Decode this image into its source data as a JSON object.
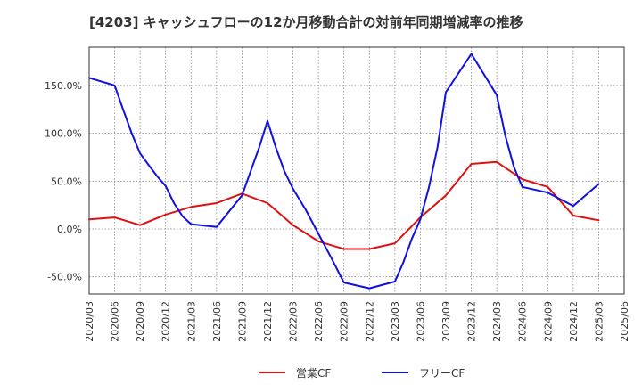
{
  "title": "[4203]  キャッシュフローの12か月移動合計の対前年同期増減率の推移",
  "chart_data": {
    "type": "line",
    "title": "[4203]  キャッシュフローの12か月移動合計の対前年同期増減率の推移",
    "xlabel": "",
    "ylabel": "",
    "x": [
      "2020/03",
      "2020/06",
      "2020/09",
      "2020/12",
      "2021/03",
      "2021/06",
      "2021/09",
      "2021/12",
      "2022/03",
      "2022/06",
      "2022/09",
      "2022/12",
      "2023/03",
      "2023/06",
      "2023/09",
      "2023/12",
      "2024/03",
      "2024/06",
      "2024/09",
      "2024/12",
      "2025/03",
      "2025/06"
    ],
    "y_ticks": [
      -50,
      0,
      50,
      100,
      150
    ],
    "y_tick_labels": [
      "-50.0%",
      "0.0%",
      "50.0%",
      "100.0%",
      "150.0%"
    ],
    "ylim": [
      -68,
      190
    ],
    "grid": true,
    "legend_position": "bottom",
    "series": [
      {
        "name": "営業CF",
        "color": "#dd1111",
        "points": [
          [
            0,
            10
          ],
          [
            1,
            12
          ],
          [
            2,
            4
          ],
          [
            3,
            15
          ],
          [
            4,
            23
          ],
          [
            5,
            27
          ],
          [
            6,
            37
          ],
          [
            7,
            27
          ],
          [
            8,
            4
          ],
          [
            9,
            -13
          ],
          [
            10,
            -21
          ],
          [
            11,
            -21
          ],
          [
            12,
            -15
          ],
          [
            13,
            12
          ],
          [
            14,
            35
          ],
          [
            15,
            68
          ],
          [
            16,
            70
          ],
          [
            17,
            52
          ],
          [
            18,
            44
          ],
          [
            19,
            14
          ],
          [
            20,
            9
          ]
        ]
      },
      {
        "name": "フリーCF",
        "color": "#1111dd",
        "points": [
          [
            0,
            158
          ],
          [
            1,
            150
          ],
          [
            1.33,
            125
          ],
          [
            1.67,
            100
          ],
          [
            2,
            79
          ],
          [
            2.33,
            67
          ],
          [
            2.67,
            55
          ],
          [
            3,
            45
          ],
          [
            3.33,
            27
          ],
          [
            3.67,
            13
          ],
          [
            4,
            5
          ],
          [
            5,
            2
          ],
          [
            6,
            35
          ],
          [
            6.67,
            85
          ],
          [
            7,
            113
          ],
          [
            7.33,
            85
          ],
          [
            7.67,
            60
          ],
          [
            8,
            42
          ],
          [
            8.5,
            20
          ],
          [
            9,
            -5
          ],
          [
            9.5,
            -30
          ],
          [
            10,
            -56
          ],
          [
            11,
            -62
          ],
          [
            12,
            -55
          ],
          [
            12.33,
            -35
          ],
          [
            12.67,
            -10
          ],
          [
            13,
            10
          ],
          [
            13.33,
            43
          ],
          [
            13.67,
            85
          ],
          [
            14,
            143
          ],
          [
            15,
            183
          ],
          [
            16,
            140
          ],
          [
            16.33,
            98
          ],
          [
            16.67,
            65
          ],
          [
            17,
            44
          ],
          [
            18,
            38
          ],
          [
            19,
            24
          ],
          [
            20,
            47
          ]
        ]
      }
    ]
  }
}
